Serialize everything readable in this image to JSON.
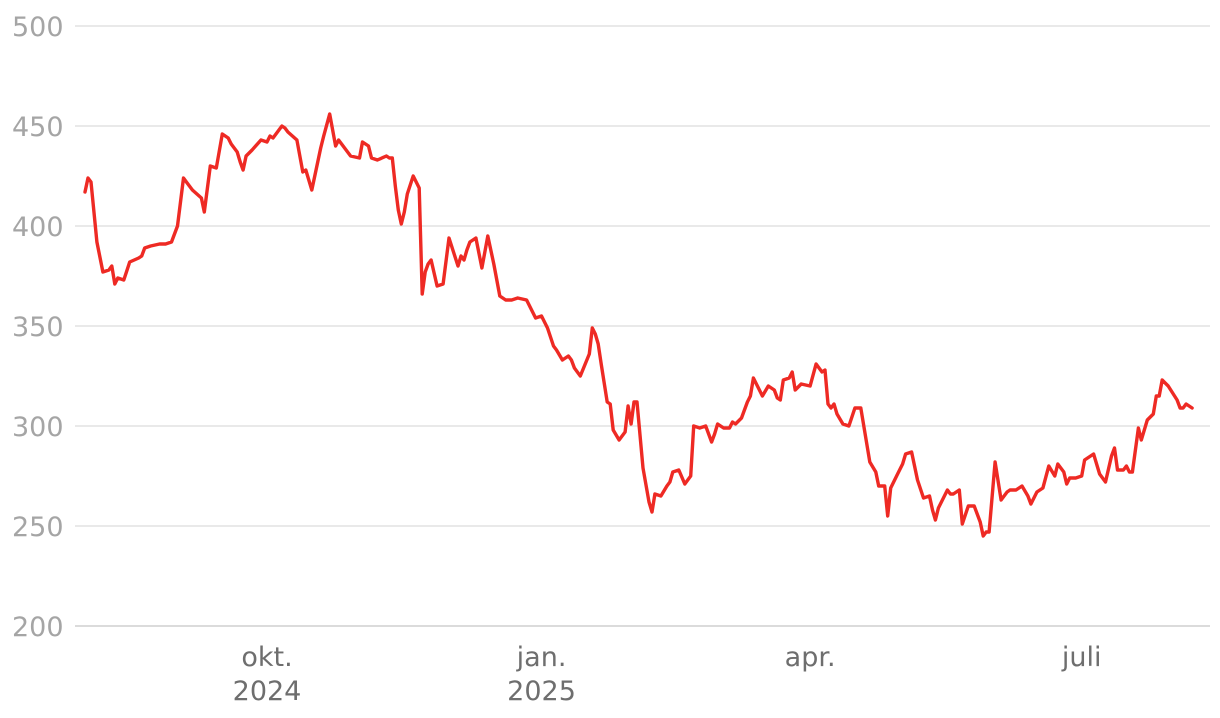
{
  "chart_data": {
    "type": "line",
    "ylim": [
      200,
      500
    ],
    "yticks": [
      500,
      450,
      400,
      350,
      300,
      250,
      200
    ],
    "xlim": [
      "2024-07-31",
      "2025-08-11"
    ],
    "xticks": [
      {
        "date": "2024-10-01",
        "line1": "okt.",
        "line2": "2024"
      },
      {
        "date": "2025-01-01",
        "line1": "jan.",
        "line2": "2025"
      },
      {
        "date": "2025-04-01",
        "line1": "apr.",
        "line2": ""
      },
      {
        "date": "2025-07-01",
        "line1": "juli",
        "line2": ""
      }
    ],
    "grid": true,
    "color": "#ee2a24",
    "series": [
      {
        "x": [
          "2024-08-01",
          "2024-08-02",
          "2024-08-03",
          "2024-08-05",
          "2024-08-07",
          "2024-08-09",
          "2024-08-10",
          "2024-08-11",
          "2024-08-12",
          "2024-08-14",
          "2024-08-16",
          "2024-08-19",
          "2024-08-20",
          "2024-08-21",
          "2024-08-23",
          "2024-08-26",
          "2024-08-28",
          "2024-08-30",
          "2024-09-01",
          "2024-09-03",
          "2024-09-04",
          "2024-09-06",
          "2024-09-09",
          "2024-09-10",
          "2024-09-12",
          "2024-09-14",
          "2024-09-16",
          "2024-09-18",
          "2024-09-19",
          "2024-09-21",
          "2024-09-22",
          "2024-09-23",
          "2024-09-24",
          "2024-09-26",
          "2024-09-29",
          "2024-10-01",
          "2024-10-02",
          "2024-10-03",
          "2024-10-06",
          "2024-10-07",
          "2024-10-08",
          "2024-10-11",
          "2024-10-13",
          "2024-10-14",
          "2024-10-16",
          "2024-10-19",
          "2024-10-20",
          "2024-10-22",
          "2024-10-24",
          "2024-10-25",
          "2024-10-26",
          "2024-10-27",
          "2024-10-29",
          "2024-11-01",
          "2024-11-02",
          "2024-11-04",
          "2024-11-05",
          "2024-11-07",
          "2024-11-10",
          "2024-11-11",
          "2024-11-12",
          "2024-11-13",
          "2024-11-14",
          "2024-11-15",
          "2024-11-16",
          "2024-11-17",
          "2024-11-19",
          "2024-11-21",
          "2024-11-22",
          "2024-11-23",
          "2024-11-24",
          "2024-11-25",
          "2024-11-27",
          "2024-11-29",
          "2024-12-01",
          "2024-12-04",
          "2024-12-05",
          "2024-12-06",
          "2024-12-07",
          "2024-12-08",
          "2024-12-10",
          "2024-12-12",
          "2024-12-14",
          "2024-12-16",
          "2024-12-18",
          "2024-12-20",
          "2024-12-22",
          "2024-12-24",
          "2024-12-27",
          "2024-12-30",
          "2025-01-01",
          "2025-01-03",
          "2025-01-05",
          "2025-01-06",
          "2025-01-08",
          "2025-01-10",
          "2025-01-11",
          "2025-01-12",
          "2025-01-14",
          "2025-01-17",
          "2025-01-18",
          "2025-01-19",
          "2025-01-20",
          "2025-01-21",
          "2025-01-23",
          "2025-01-24",
          "2025-01-25",
          "2025-01-27",
          "2025-01-29",
          "2025-01-30",
          "2025-01-31",
          "2025-02-01",
          "2025-02-02",
          "2025-02-04",
          "2025-02-06",
          "2025-02-07",
          "2025-02-08",
          "2025-02-10",
          "2025-02-12",
          "2025-02-13",
          "2025-02-14",
          "2025-02-16",
          "2025-02-18",
          "2025-02-20",
          "2025-02-21",
          "2025-02-23",
          "2025-02-25",
          "2025-02-27",
          "2025-02-28",
          "2025-03-01",
          "2025-03-03",
          "2025-03-05",
          "2025-03-06",
          "2025-03-07",
          "2025-03-09",
          "2025-03-11",
          "2025-03-12",
          "2025-03-13",
          "2025-03-14",
          "2025-03-16",
          "2025-03-18",
          "2025-03-20",
          "2025-03-21",
          "2025-03-22",
          "2025-03-23",
          "2025-03-25",
          "2025-03-26",
          "2025-03-27",
          "2025-03-29",
          "2025-04-01",
          "2025-04-03",
          "2025-04-05",
          "2025-04-06",
          "2025-04-07",
          "2025-04-08",
          "2025-04-09",
          "2025-04-10",
          "2025-04-12",
          "2025-04-14",
          "2025-04-16",
          "2025-04-18",
          "2025-04-21",
          "2025-04-23",
          "2025-04-24",
          "2025-04-26",
          "2025-04-27",
          "2025-04-28",
          "2025-04-30",
          "2025-05-02",
          "2025-05-03",
          "2025-05-05",
          "2025-05-07",
          "2025-05-09",
          "2025-05-11",
          "2025-05-12",
          "2025-05-13",
          "2025-05-14",
          "2025-05-17",
          "2025-05-18",
          "2025-05-19",
          "2025-05-21",
          "2025-05-22",
          "2025-05-24",
          "2025-05-26",
          "2025-05-28",
          "2025-05-29",
          "2025-05-30",
          "2025-05-31",
          "2025-06-02",
          "2025-06-04",
          "2025-06-06",
          "2025-06-07",
          "2025-06-09",
          "2025-06-11",
          "2025-06-13",
          "2025-06-14",
          "2025-06-16",
          "2025-06-17",
          "2025-06-18",
          "2025-06-20",
          "2025-06-22",
          "2025-06-23",
          "2025-06-25",
          "2025-06-26",
          "2025-06-27",
          "2025-06-29",
          "2025-07-01",
          "2025-07-02",
          "2025-07-03",
          "2025-07-05",
          "2025-07-07",
          "2025-07-09",
          "2025-07-11",
          "2025-07-12",
          "2025-07-13",
          "2025-07-15",
          "2025-07-16",
          "2025-07-17",
          "2025-07-18",
          "2025-07-20",
          "2025-07-21",
          "2025-07-23",
          "2025-07-25",
          "2025-07-26",
          "2025-07-27",
          "2025-07-28",
          "2025-07-30",
          "2025-08-02",
          "2025-08-03",
          "2025-08-04",
          "2025-08-05",
          "2025-08-07"
        ],
        "y": [
          417,
          424,
          422,
          392,
          377,
          378,
          380,
          371,
          374,
          373,
          382,
          384,
          385,
          389,
          390,
          391,
          391,
          392,
          400,
          424,
          422,
          418,
          414,
          407,
          430,
          429,
          446,
          444,
          441,
          437,
          432,
          428,
          435,
          438,
          443,
          442,
          445,
          444,
          450,
          449,
          447,
          443,
          427,
          428,
          418,
          439,
          445,
          456,
          440,
          443,
          441,
          439,
          435,
          434,
          442,
          440,
          434,
          433,
          435,
          434,
          434,
          420,
          408,
          401,
          407,
          416,
          425,
          419,
          366,
          377,
          381,
          383,
          370,
          371,
          394,
          380,
          385,
          383,
          388,
          392,
          394,
          379,
          395,
          381,
          365,
          363,
          363,
          364,
          363,
          354,
          355,
          349,
          340,
          338,
          333,
          335,
          333,
          329,
          325,
          336,
          349,
          346,
          341,
          331,
          312,
          311,
          298,
          293,
          297,
          310,
          301,
          312,
          312,
          279,
          262,
          257,
          266,
          265,
          270,
          272,
          277,
          278,
          271,
          275,
          300,
          299,
          300,
          292,
          296,
          301,
          299,
          299,
          302,
          301,
          304,
          312,
          315,
          324,
          321,
          315,
          320,
          318,
          314,
          313,
          323,
          324,
          327,
          318,
          321,
          320,
          331,
          327,
          328,
          311,
          309,
          311,
          306,
          301,
          300,
          309,
          309,
          282,
          277,
          270,
          270,
          255,
          269,
          275,
          281,
          286,
          287,
          273,
          264,
          265,
          258,
          253,
          259,
          268,
          266,
          266,
          268,
          251,
          260,
          260,
          252,
          245,
          247,
          247,
          282,
          263,
          267,
          268,
          268,
          270,
          265,
          261,
          267,
          268,
          269,
          280,
          275,
          281,
          277,
          271,
          274,
          274,
          275,
          283,
          284,
          286,
          276,
          272,
          285,
          289,
          278,
          278,
          280,
          277,
          277,
          299,
          293,
          303,
          306,
          315,
          315,
          323,
          320,
          313,
          309,
          309,
          311,
          309
        ]
      }
    ]
  }
}
